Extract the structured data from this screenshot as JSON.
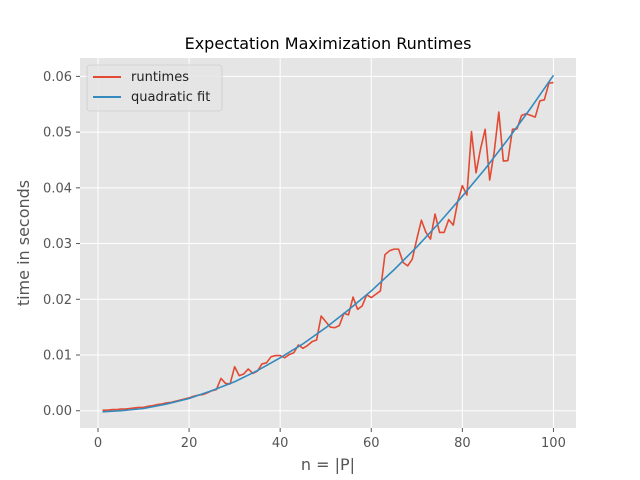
{
  "chart_data": {
    "type": "line",
    "title": "Expectation Maximization Runtimes",
    "xlabel": "n = |P|",
    "ylabel": "time in seconds",
    "xlim": [
      -3.95,
      104.95
    ],
    "ylim": [
      -0.0031,
      0.0633
    ],
    "xticks": [
      0,
      20,
      40,
      60,
      80,
      100
    ],
    "yticks": [
      0.0,
      0.01,
      0.02,
      0.03,
      0.04,
      0.05,
      0.06
    ],
    "xtick_labels": [
      "0",
      "20",
      "40",
      "60",
      "80",
      "100"
    ],
    "ytick_labels": [
      "0.00",
      "0.01",
      "0.02",
      "0.03",
      "0.04",
      "0.05",
      "0.06"
    ],
    "grid": true,
    "legend_position": "upper-left",
    "style": "ggplot",
    "series": [
      {
        "name": "runtimes",
        "color": "#E24A33",
        "x": [
          1,
          2,
          3,
          4,
          5,
          6,
          7,
          8,
          9,
          10,
          11,
          12,
          13,
          14,
          15,
          16,
          17,
          18,
          19,
          20,
          21,
          22,
          23,
          24,
          25,
          26,
          27,
          28,
          29,
          30,
          31,
          32,
          33,
          34,
          35,
          36,
          37,
          38,
          39,
          40,
          41,
          42,
          43,
          44,
          45,
          46,
          47,
          48,
          49,
          50,
          51,
          52,
          53,
          54,
          55,
          56,
          57,
          58,
          59,
          60,
          61,
          62,
          63,
          64,
          65,
          66,
          67,
          68,
          69,
          70,
          71,
          72,
          73,
          74,
          75,
          76,
          77,
          78,
          79,
          80,
          81,
          82,
          83,
          84,
          85,
          86,
          87,
          88,
          89,
          90,
          91,
          92,
          93,
          94,
          95,
          96,
          97,
          98,
          99,
          100
        ],
        "y": [
          0.0001,
          0.0001,
          0.0002,
          0.0002,
          0.0003,
          0.0003,
          0.0004,
          0.0005,
          0.0006,
          0.0006,
          0.0008,
          0.0009,
          0.0011,
          0.0012,
          0.0014,
          0.0015,
          0.0017,
          0.0019,
          0.0021,
          0.0023,
          0.0026,
          0.0028,
          0.0029,
          0.0032,
          0.0036,
          0.0038,
          0.0058,
          0.0049,
          0.0048,
          0.0079,
          0.0063,
          0.0066,
          0.0075,
          0.0067,
          0.0071,
          0.0084,
          0.0086,
          0.0097,
          0.0099,
          0.0099,
          0.0095,
          0.0101,
          0.0104,
          0.0118,
          0.0112,
          0.0117,
          0.0124,
          0.0127,
          0.017,
          0.016,
          0.015,
          0.0149,
          0.0153,
          0.0175,
          0.0172,
          0.0204,
          0.0182,
          0.0188,
          0.0208,
          0.0203,
          0.0209,
          0.0215,
          0.028,
          0.0287,
          0.029,
          0.029,
          0.0266,
          0.026,
          0.0272,
          0.0308,
          0.0342,
          0.032,
          0.0308,
          0.0353,
          0.032,
          0.032,
          0.0343,
          0.0333,
          0.0376,
          0.0404,
          0.0387,
          0.0501,
          0.0427,
          0.047,
          0.0505,
          0.0414,
          0.0465,
          0.0536,
          0.0448,
          0.0449,
          0.0505,
          0.0506,
          0.053,
          0.0533,
          0.053,
          0.0527,
          0.0556,
          0.0558,
          0.0588,
          0.0589
        ]
      },
      {
        "name": "quadratic fit",
        "color": "#348ABD",
        "fit": {
          "degree": 2,
          "a": 6.04e-06,
          "b": 0.0,
          "c": -0.0002
        },
        "x": [
          1,
          5,
          10,
          15,
          20,
          25,
          30,
          35,
          40,
          45,
          50,
          55,
          60,
          65,
          70,
          75,
          80,
          85,
          90,
          95,
          100
        ],
        "y": [
          -0.0002,
          -0.0,
          0.0004,
          0.0012,
          0.0022,
          0.0036,
          0.0052,
          0.0072,
          0.0095,
          0.012,
          0.0149,
          0.0181,
          0.0215,
          0.0253,
          0.0294,
          0.0338,
          0.0385,
          0.0434,
          0.0487,
          0.0543,
          0.0602
        ]
      }
    ]
  }
}
